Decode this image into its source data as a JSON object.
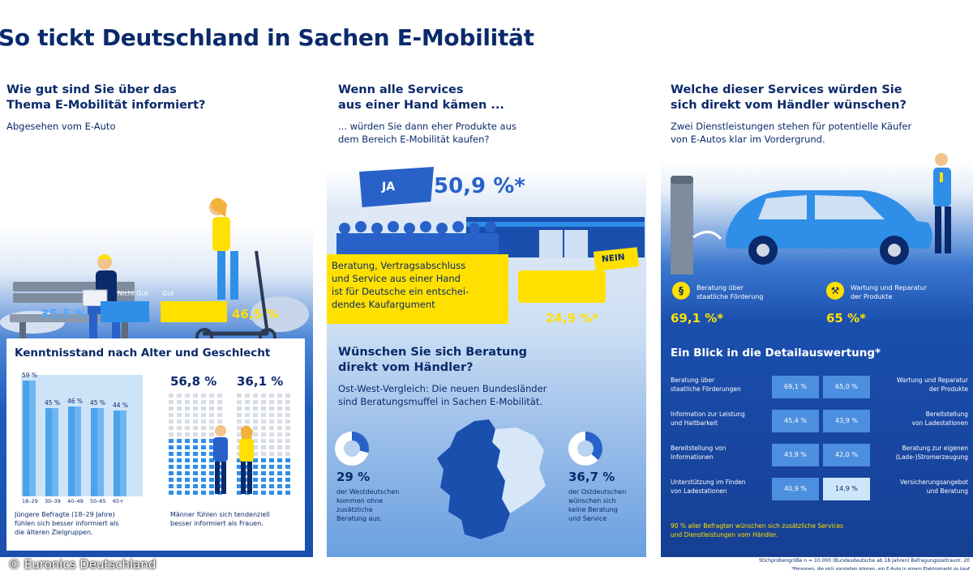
{
  "title": "So tickt Deutschland in Sachen E-Mobilität",
  "colors": {
    "navy": "#0b2a6b",
    "blue": "#2862c9",
    "yellow": "#ffe000",
    "light_blue": "#4fa7ff"
  },
  "panel1": {
    "heading_line1": "Wie gut sind Sie über das",
    "heading_line2": "Thema E-Mobilität informiert?",
    "subtitle": "Abgesehen vom E-Auto",
    "not_good_label": "Nicht Gut",
    "good_label": "Gut",
    "not_good_pct": "35,5 %",
    "good_pct": "46,5 %",
    "not_good_value": 35.5,
    "good_value": 46.5,
    "box_title": "Kenntnisstand nach Alter und Geschlecht",
    "age_groups": [
      {
        "label": "18–29",
        "value_label": "59 %",
        "value": 59
      },
      {
        "label": "30–39",
        "value_label": "45 %",
        "value": 45
      },
      {
        "label": "40–49",
        "value_label": "46 %",
        "value": 46
      },
      {
        "label": "50–65",
        "value_label": "45 %",
        "value": 45
      },
      {
        "label": "65+",
        "value_label": "44 %",
        "value": 44
      }
    ],
    "men_pct": "56,8 %",
    "women_pct": "36,1 %",
    "men_value": 56.8,
    "women_value": 36.1,
    "age_caption_l1": "Jüngere Befragte (18–29 Jahre)",
    "age_caption_l2": "fühlen sich besser informiert als",
    "age_caption_l3": "die älteren Zielgruppen.",
    "gender_caption_l1": "Männer fühlen sich tendenziell",
    "gender_caption_l2": "besser informiert als Frauen."
  },
  "panel2": {
    "heading_line1": "Wenn alle Services",
    "heading_line2": "aus einer Hand kämen ...",
    "subtitle_l1": "... würden Sie dann eher Produkte aus",
    "subtitle_l2": "dem Bereich E-Mobilität kaufen?",
    "ja_label": "JA",
    "ja_pct": "50,9 %*",
    "nein_label": "NEIN",
    "nein_pct": "24,9 %*",
    "box_l1": "Beratung, Vertragsabschluss",
    "box_l2": "und Service aus einer Hand",
    "box_l3": "ist für Deutsche ein entschei-",
    "box_l4": "dendes Kaufargument",
    "heading2_line1": "Wünschen Sie sich Beratung",
    "heading2_line2": "direkt vom Händler?",
    "sub2_l1": "Ost-West-Vergleich: Die neuen Bundesländer",
    "sub2_l2": "sind Beratungsmuffel in Sachen E-Mobilität.",
    "west_pct": "29 %",
    "west_value": 29,
    "west_l1": "der Westdeutschen",
    "west_l2": "kommen ohne",
    "west_l3": "zusätzliche",
    "west_l4": "Beratung aus.",
    "east_pct": "36,7 %",
    "east_value": 36.7,
    "east_l1": "der Ostdeutschen",
    "east_l2": "wünschen sich",
    "east_l3": "keine Beratung",
    "east_l4": "und Service"
  },
  "panel3": {
    "heading_line1": "Welche dieser Services würden Sie",
    "heading_line2": "sich direkt vom Händler wünschen?",
    "subtitle_l1": "Zwei Dienstleistungen stehen für potentielle Käufer",
    "subtitle_l2": "von E-Autos klar im Vordergrund.",
    "service1_l1": "Beratung über",
    "service1_l2": "staatliche Förderung",
    "service1_pct": "69,1 %*",
    "service2_l1": "Wartung und Reparatur",
    "service2_l2": "der Produkte",
    "service2_pct": "65 %*",
    "detail_title": "Ein Blick in die Detailauswertung*",
    "rows": [
      {
        "left_l1": "Beratung über",
        "left_l2": "staatliche Förderungen",
        "left_val": "69,1 %",
        "right_val": "65,0 %",
        "right_l1": "Wartung und Reparatur",
        "right_l2": "der Produkte"
      },
      {
        "left_l1": "Information zur Leistung",
        "left_l2": "und Haltbarkeit",
        "left_val": "45,4 %",
        "right_val": "43,9 %",
        "right_l1": "Bereitstellung",
        "right_l2": "von Ladestationen"
      },
      {
        "left_l1": "Bereitstellung von",
        "left_l2": "Informationen",
        "left_val": "43,9 %",
        "right_val": "42,0 %",
        "right_l1": "Beratung zur eigenen",
        "right_l2": "(Lade-)Stromerzeugung"
      },
      {
        "left_l1": "Unterstützung im Finden",
        "left_l2": "von Ladestationen",
        "left_val": "40,9 %",
        "right_val": "14,9 %",
        "right_l1": "Versicherungsangebot",
        "right_l2": "und Beratung"
      }
    ],
    "footer_l1": "90 % aller Befragten wünschen sich zusätzliche Services",
    "footer_l2": "und Dienstleistungen vom Händler."
  },
  "copyright": "© Euronics Deutschland",
  "footnote1": "Stichprobengröße n = 10.000 (Bundesdeutsche ab 18 Jahren) Befragungszeitraum: 20",
  "footnote2": "*Personen, die sich vorstellen können, ein E-Auto in einem Elektromarkt zu kauf"
}
